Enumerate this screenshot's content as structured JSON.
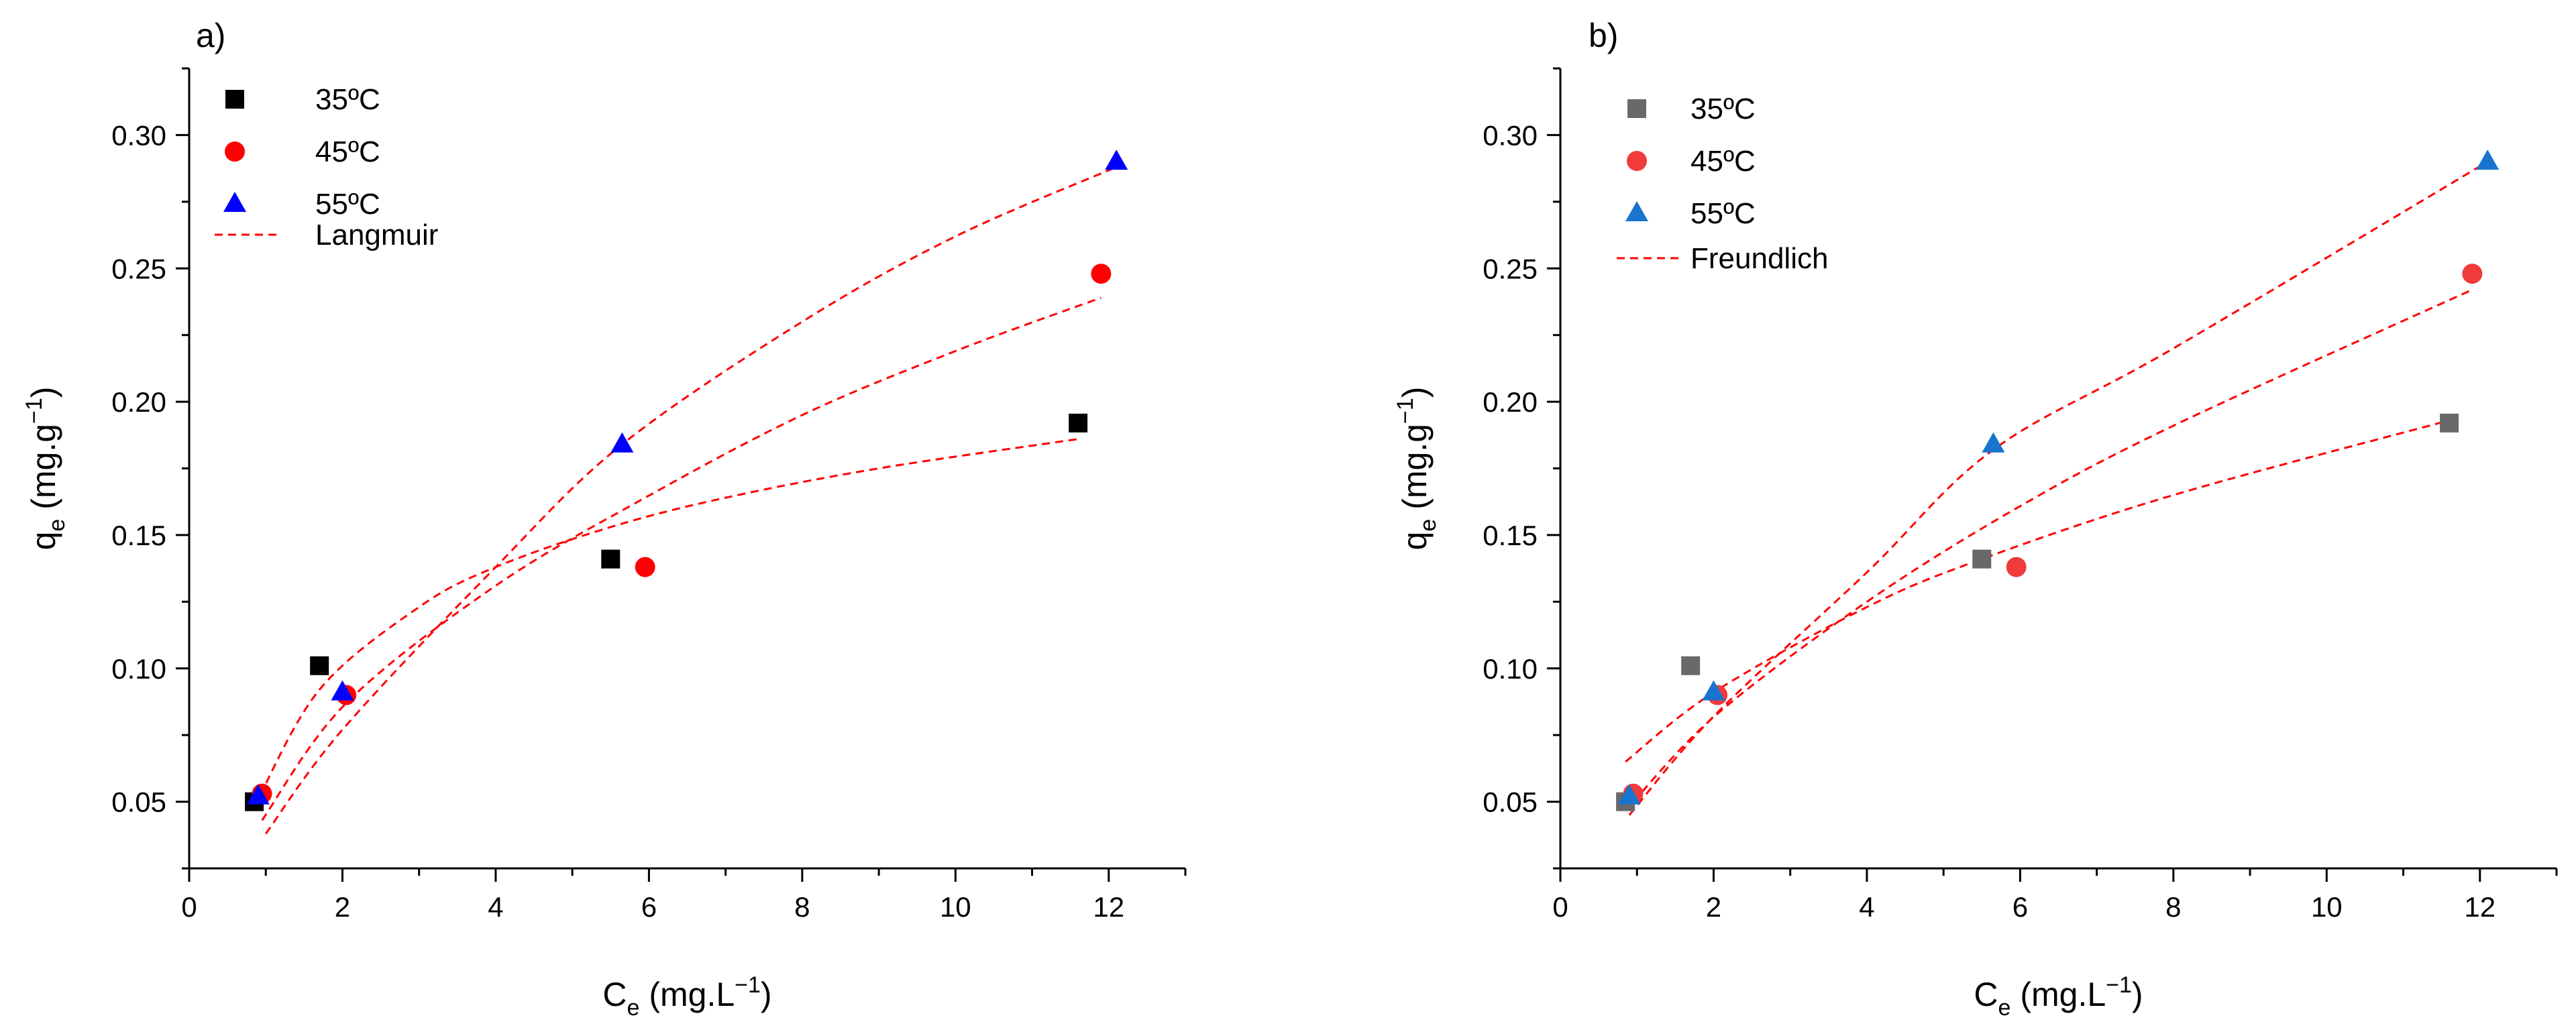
{
  "chart_data": [
    {
      "type": "scatter",
      "panel_label": "a)",
      "xlabel": {
        "main": "C",
        "sub": "e",
        "units": " (mg.L",
        "sup": "−1",
        "close": ")"
      },
      "ylabel": {
        "main": "q",
        "sub": "e",
        "units": " (mg.g",
        "sup": "−1",
        "close": ")"
      },
      "xlim": [
        0,
        13
      ],
      "ylim": [
        0.025,
        0.325
      ],
      "xticks": [
        0,
        2,
        4,
        6,
        8,
        10,
        12
      ],
      "yticks": [
        0.05,
        0.1,
        0.15,
        0.2,
        0.25,
        0.3
      ],
      "xtick_labels": [
        "0",
        "2",
        "4",
        "6",
        "8",
        "10",
        "12"
      ],
      "ytick_labels": [
        "0.05",
        "0.10",
        "0.15",
        "0.20",
        "0.25",
        "0.30"
      ],
      "legend": "top-left",
      "grid": false,
      "series": [
        {
          "name": "35ºC",
          "marker": "square",
          "color": "#000000",
          "x": [
            0.85,
            1.7,
            5.5,
            11.6
          ],
          "y": [
            0.05,
            0.101,
            0.141,
            0.192
          ]
        },
        {
          "name": "45ºC",
          "marker": "circle",
          "color": "#ff0000",
          "x": [
            0.95,
            2.05,
            5.95,
            11.9
          ],
          "y": [
            0.053,
            0.09,
            0.138,
            0.248
          ]
        },
        {
          "name": "55ºC",
          "marker": "triangle",
          "color": "#0000ff",
          "x": [
            0.9,
            2.0,
            5.65,
            12.1
          ],
          "y": [
            0.052,
            0.091,
            0.184,
            0.29
          ]
        }
      ],
      "fit": {
        "name": "Langmuir",
        "color": "#ff0000",
        "curves": [
          {
            "x": [
              0.85,
              1.7,
              3.0,
              4.0,
              5.5,
              7.0,
              9.0,
              11.6
            ],
            "y": [
              0.048,
              0.092,
              0.123,
              0.138,
              0.153,
              0.164,
              0.175,
              0.186
            ]
          },
          {
            "x": [
              0.95,
              2.05,
              4.0,
              5.95,
              8.0,
              10.0,
              11.9
            ],
            "y": [
              0.043,
              0.087,
              0.131,
              0.164,
              0.195,
              0.219,
              0.239
            ]
          },
          {
            "x": [
              1.0,
              2.0,
              4.0,
              5.65,
              8.0,
              10.0,
              12.1
            ],
            "y": [
              0.038,
              0.077,
              0.138,
              0.184,
              0.23,
              0.262,
              0.288
            ]
          }
        ]
      }
    },
    {
      "type": "scatter",
      "panel_label": "b)",
      "xlabel": {
        "main": "C",
        "sub": "e",
        "units": " (mg.L",
        "sup": "−1",
        "close": ")"
      },
      "ylabel": {
        "main": "q",
        "sub": "e",
        "units": " (mg.g",
        "sup": "−1",
        "close": ")"
      },
      "xlim": [
        0,
        13
      ],
      "ylim": [
        0.025,
        0.325
      ],
      "xticks": [
        0,
        2,
        4,
        6,
        8,
        10,
        12
      ],
      "yticks": [
        0.05,
        0.1,
        0.15,
        0.2,
        0.25,
        0.3
      ],
      "xtick_labels": [
        "0",
        "2",
        "4",
        "6",
        "8",
        "10",
        "12"
      ],
      "ytick_labels": [
        "0.05",
        "0.10",
        "0.15",
        "0.20",
        "0.25",
        "0.30"
      ],
      "legend": "top-left",
      "grid": false,
      "series": [
        {
          "name": "35ºC",
          "marker": "square",
          "color": "#696969",
          "x": [
            0.85,
            1.7,
            5.5,
            11.6
          ],
          "y": [
            0.05,
            0.101,
            0.141,
            0.192
          ]
        },
        {
          "name": "45ºC",
          "marker": "circle",
          "color": "#ef3b3b",
          "x": [
            0.95,
            2.05,
            5.95,
            11.9
          ],
          "y": [
            0.053,
            0.09,
            0.138,
            0.248
          ]
        },
        {
          "name": "55ºC",
          "marker": "triangle",
          "color": "#1874cd",
          "x": [
            0.9,
            2.0,
            5.65,
            12.1
          ],
          "y": [
            0.052,
            0.091,
            0.184,
            0.29
          ]
        }
      ],
      "fit": {
        "name": "Freundlich",
        "color": "#ff0000",
        "curves": [
          {
            "x": [
              0.85,
              2.0,
              4.0,
              5.5,
              8.0,
              11.6
            ],
            "y": [
              0.065,
              0.091,
              0.123,
              0.141,
              0.165,
              0.193
            ]
          },
          {
            "x": [
              0.95,
              2.05,
              4.0,
              5.95,
              8.0,
              11.9
            ],
            "y": [
              0.05,
              0.083,
              0.125,
              0.16,
              0.191,
              0.242
            ]
          },
          {
            "x": [
              0.9,
              2.0,
              4.0,
              5.65,
              8.0,
              12.1
            ],
            "y": [
              0.045,
              0.082,
              0.136,
              0.182,
              0.22,
              0.29
            ]
          }
        ]
      }
    }
  ]
}
